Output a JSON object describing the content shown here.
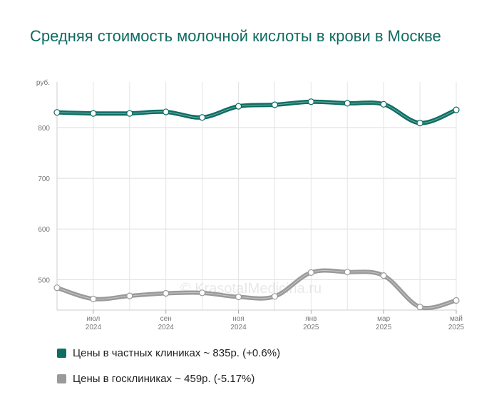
{
  "title": "Средняя стоимость молочной кислоты в крови в Москве",
  "watermark": "© KrasotaIMedicina.ru",
  "chart_data": {
    "type": "line",
    "y_unit_label": "руб.",
    "ylim": [
      440,
      890
    ],
    "y_ticks": [
      {
        "value": 500,
        "label": "500"
      },
      {
        "value": 600,
        "label": "600"
      },
      {
        "value": 700,
        "label": "700"
      },
      {
        "value": 800,
        "label": "800"
      }
    ],
    "x_ticks": [
      {
        "value": 1,
        "label": "июл",
        "year": "2024"
      },
      {
        "value": 3,
        "label": "сен",
        "year": "2024"
      },
      {
        "value": 5,
        "label": "ноя",
        "year": "2024"
      },
      {
        "value": 7,
        "label": "янв",
        "year": "2025"
      },
      {
        "value": 9,
        "label": "мар",
        "year": "2025"
      },
      {
        "value": 11,
        "label": "май",
        "year": "2025"
      }
    ],
    "x": [
      0,
      1,
      2,
      3,
      4,
      5,
      6,
      7,
      8,
      9,
      10,
      11
    ],
    "grid": true,
    "legend_position": "bottom-left",
    "series": [
      {
        "name": "Цены в частных клиниках ~ 835р. (+0.6%)",
        "color": "#0e6e63",
        "values": [
          830,
          828,
          828,
          831,
          820,
          842,
          845,
          851,
          848,
          846,
          809,
          835
        ]
      },
      {
        "name": "Цены в госклиниках ~ 459р. (-5.17%)",
        "color": "#9a9a9a",
        "values": [
          484,
          462,
          468,
          473,
          474,
          466,
          467,
          514,
          515,
          508,
          446,
          459
        ]
      }
    ]
  }
}
